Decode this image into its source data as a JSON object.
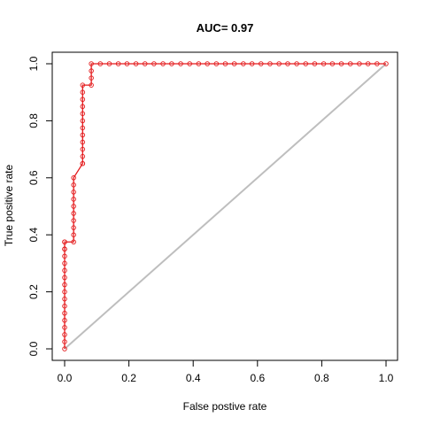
{
  "chart_data": {
    "type": "line",
    "title": "AUC= 0.97",
    "xlabel": "False postive rate",
    "ylabel": "True positive rate",
    "xlim": [
      0,
      1
    ],
    "ylim": [
      0,
      1
    ],
    "x_ticks": [
      0.0,
      0.2,
      0.4,
      0.6,
      0.8,
      1.0
    ],
    "y_ticks": [
      0.0,
      0.2,
      0.4,
      0.6,
      0.8,
      1.0
    ],
    "x_tick_labels": [
      "0.0",
      "0.2",
      "0.4",
      "0.6",
      "0.8",
      "1.0"
    ],
    "y_tick_labels": [
      "0.0",
      "0.2",
      "0.4",
      "0.6",
      "0.8",
      "1.0"
    ],
    "grid": false,
    "series": [
      {
        "kind": "roc",
        "color": "#e41a1c",
        "marker_color": "#e41a1c",
        "x": [
          0.0,
          0.0,
          0.0,
          0.0,
          0.0,
          0.0,
          0.0,
          0.0,
          0.0,
          0.0,
          0.0,
          0.0,
          0.0,
          0.0,
          0.0,
          0.0,
          0.0,
          0.0,
          0.028,
          0.028,
          0.028,
          0.028,
          0.028,
          0.028,
          0.028,
          0.028,
          0.028,
          0.028,
          0.056,
          0.056,
          0.056,
          0.056,
          0.056,
          0.056,
          0.056,
          0.056,
          0.056,
          0.056,
          0.056,
          0.056,
          0.056,
          0.083,
          0.083,
          0.083,
          0.083,
          0.111,
          0.139,
          0.167,
          0.194,
          0.222,
          0.25,
          0.278,
          0.306,
          0.333,
          0.361,
          0.389,
          0.417,
          0.444,
          0.472,
          0.5,
          0.528,
          0.556,
          0.583,
          0.611,
          0.639,
          0.667,
          0.694,
          0.722,
          0.75,
          0.778,
          0.806,
          0.833,
          0.861,
          0.889,
          0.917,
          0.944,
          0.972,
          1.0
        ],
        "y": [
          0.0,
          0.025,
          0.05,
          0.075,
          0.1,
          0.125,
          0.15,
          0.175,
          0.2,
          0.225,
          0.25,
          0.275,
          0.3,
          0.325,
          0.35,
          0.375,
          0.35,
          0.375,
          0.375,
          0.4,
          0.425,
          0.45,
          0.475,
          0.5,
          0.525,
          0.55,
          0.575,
          0.6,
          0.65,
          0.65,
          0.675,
          0.7,
          0.725,
          0.75,
          0.775,
          0.8,
          0.825,
          0.85,
          0.875,
          0.9,
          0.925,
          0.925,
          0.95,
          0.975,
          1.0,
          1.0,
          1.0,
          1.0,
          1.0,
          1.0,
          1.0,
          1.0,
          1.0,
          1.0,
          1.0,
          1.0,
          1.0,
          1.0,
          1.0,
          1.0,
          1.0,
          1.0,
          1.0,
          1.0,
          1.0,
          1.0,
          1.0,
          1.0,
          1.0,
          1.0,
          1.0,
          1.0,
          1.0,
          1.0,
          1.0,
          1.0,
          1.0,
          1.0
        ]
      },
      {
        "kind": "diagonal",
        "color": "#bebebe",
        "x": [
          0,
          1
        ],
        "y": [
          0,
          1
        ]
      }
    ]
  }
}
